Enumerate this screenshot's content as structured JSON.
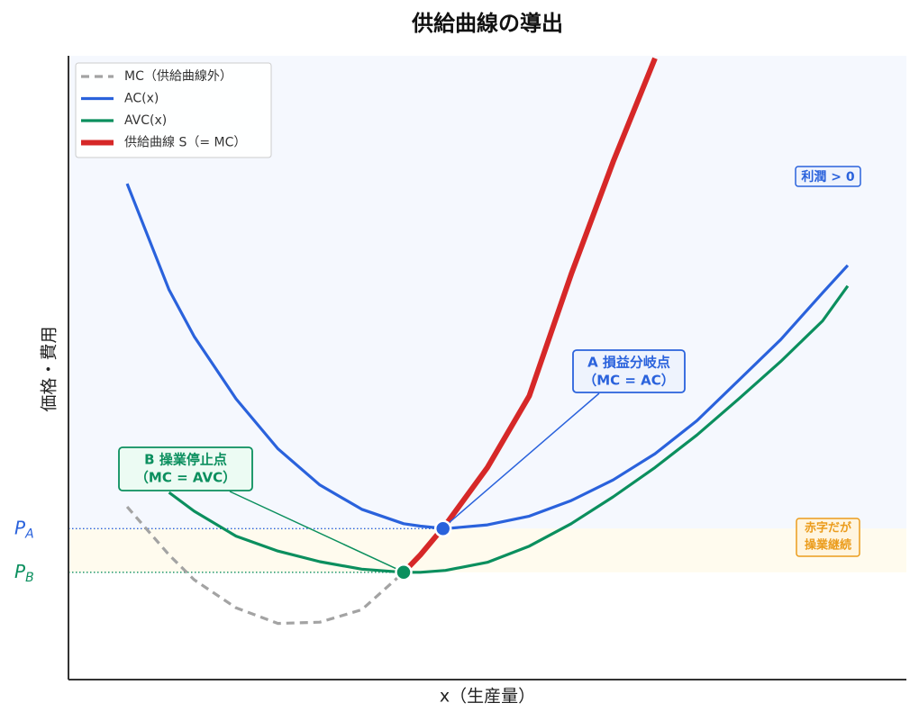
{
  "chart_data": {
    "type": "line",
    "title": "供給曲線の導出",
    "xlabel": "x（生産量）",
    "ylabel": "価格・費用",
    "xlim": [
      0,
      10
    ],
    "ylim": [
      0,
      10
    ],
    "x": [
      0.7,
      1.2,
      1.5,
      2.0,
      2.5,
      3.0,
      3.5,
      4.0,
      4.2,
      4.5,
      5.0,
      5.5,
      6.0,
      6.5,
      7.0,
      7.5,
      8.0,
      8.5,
      9.0,
      9.3
    ],
    "series": [
      {
        "name": "MC（供給曲線外）",
        "color": "#a3a3a3",
        "dashed": true,
        "values": [
          2.77,
          2.0,
          1.6,
          1.15,
          0.9,
          0.92,
          1.12,
          1.72,
          null,
          null,
          null,
          null,
          null,
          null,
          null,
          null,
          null,
          null,
          null,
          null
        ]
      },
      {
        "name": "AC(x)",
        "color": "#2a62dc",
        "values": [
          7.95,
          6.25,
          5.5,
          4.5,
          3.7,
          3.12,
          2.73,
          2.5,
          2.46,
          2.42,
          2.48,
          2.62,
          2.87,
          3.2,
          3.62,
          4.15,
          4.8,
          5.45,
          6.2,
          6.64
        ]
      },
      {
        "name": "AVC(x)",
        "color": "#0b8f5e",
        "values": [
          null,
          3.0,
          2.7,
          2.3,
          2.06,
          1.89,
          1.77,
          1.72,
          1.72,
          1.75,
          1.88,
          2.14,
          2.5,
          2.93,
          3.4,
          3.92,
          4.5,
          5.1,
          5.75,
          6.31
        ]
      },
      {
        "name": "供給曲線 S（= MC）",
        "color": "#d62828",
        "width": 6,
        "values": [
          null,
          null,
          null,
          null,
          null,
          null,
          null,
          1.72,
          2.0,
          2.48,
          3.4,
          4.55,
          6.5,
          8.3,
          9.96,
          null,
          null,
          null,
          null,
          null
        ]
      }
    ],
    "yticks": [
      {
        "value": 2.42,
        "label": "P",
        "sub": "A",
        "color": "#2a62dc"
      },
      {
        "value": 1.72,
        "label": "P",
        "sub": "B",
        "color": "#0b8f5e"
      }
    ],
    "points": [
      {
        "x": 4.47,
        "y": 2.42,
        "color": "#2a62dc",
        "label": "A 損益分岐点",
        "sublabel": "（MC = AC）"
      },
      {
        "x": 4.0,
        "y": 1.72,
        "color": "#0b8f5e",
        "label": "B 操業停止点",
        "sublabel": "（MC = AVC）"
      }
    ],
    "regions": [
      {
        "label": "利潤 > 0",
        "color": "#2a62dc",
        "fill": "#f5f8fe"
      },
      {
        "label": "赤字だが",
        "label2": "操業継続",
        "color": "#eb9c1c",
        "fill": "#fffbee"
      }
    ],
    "legend": "upper left"
  }
}
